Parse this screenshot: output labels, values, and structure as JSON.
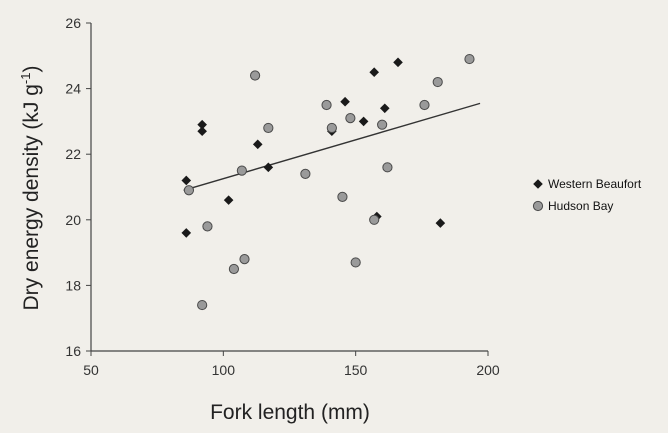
{
  "chart_data": {
    "type": "scatter",
    "title": "",
    "xlabel": "Fork length (mm)",
    "ylabel": "Dry energy density (kJ g",
    "ylabel_sup": "-1",
    "ylabel_close": ")",
    "xlim": [
      50,
      200
    ],
    "ylim": [
      16,
      26
    ],
    "xticks": [
      50,
      100,
      150,
      200
    ],
    "yticks": [
      16,
      18,
      20,
      22,
      24,
      26
    ],
    "grid": false,
    "legend_position": "right",
    "series": [
      {
        "name": "Western Beaufort",
        "marker": "diamond",
        "color": "#1a1a1a",
        "points": [
          [
            86,
            21.2
          ],
          [
            86,
            19.6
          ],
          [
            92,
            22.9
          ],
          [
            92,
            22.7
          ],
          [
            102,
            20.6
          ],
          [
            113,
            22.3
          ],
          [
            117,
            21.6
          ],
          [
            141,
            22.7
          ],
          [
            146,
            23.6
          ],
          [
            153,
            23.0
          ],
          [
            157,
            24.5
          ],
          [
            158,
            20.1
          ],
          [
            161,
            23.4
          ],
          [
            166,
            24.8
          ],
          [
            182,
            19.9
          ]
        ]
      },
      {
        "name": "Hudson Bay",
        "marker": "circle",
        "color": "#9a9a9a",
        "points": [
          [
            87,
            20.9
          ],
          [
            92,
            17.4
          ],
          [
            94,
            19.8
          ],
          [
            107,
            21.5
          ],
          [
            108,
            18.8
          ],
          [
            112,
            24.4
          ],
          [
            104,
            18.5
          ],
          [
            117,
            22.8
          ],
          [
            131,
            21.4
          ],
          [
            141,
            22.8
          ],
          [
            139,
            23.5
          ],
          [
            145,
            20.7
          ],
          [
            150,
            18.7
          ],
          [
            148,
            23.1
          ],
          [
            157,
            20.0
          ],
          [
            160,
            22.9
          ],
          [
            162,
            21.6
          ],
          [
            176,
            23.5
          ],
          [
            181,
            24.2
          ],
          [
            193,
            24.9
          ]
        ]
      }
    ],
    "trendline": {
      "x": [
        85,
        197
      ],
      "y": [
        20.9,
        23.55
      ]
    }
  }
}
